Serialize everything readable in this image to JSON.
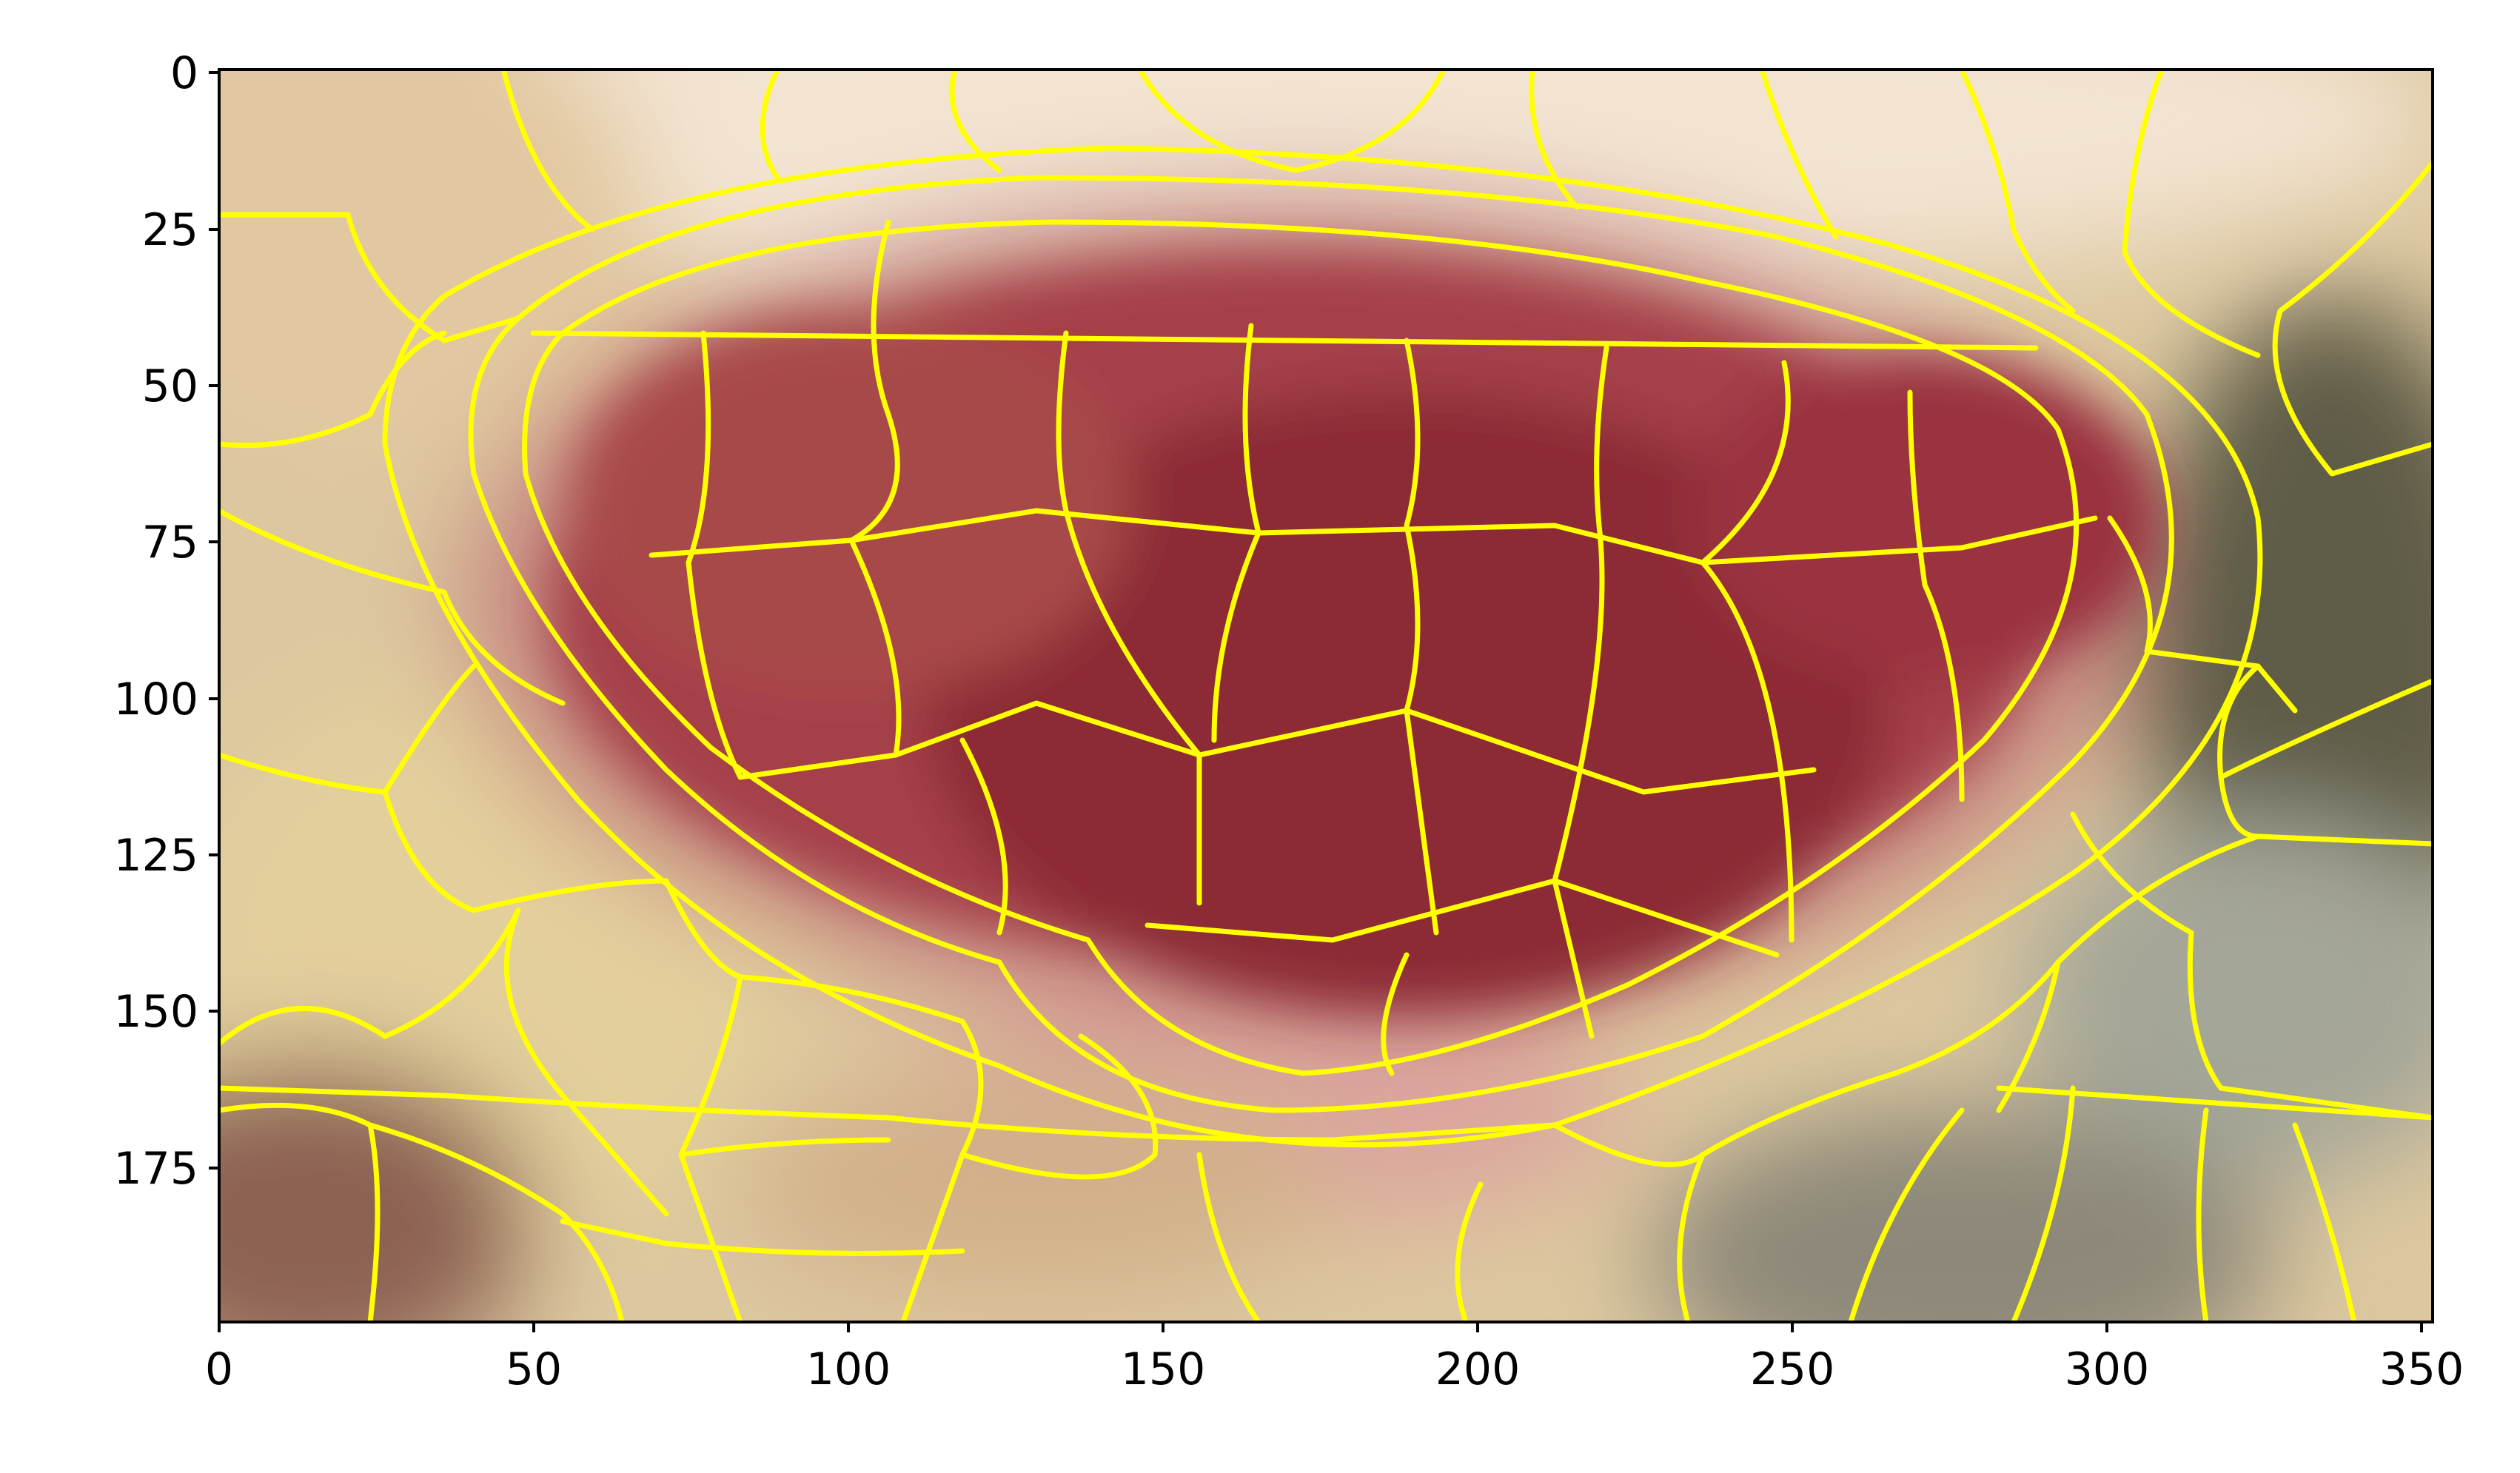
{
  "figure": {
    "type": "image-with-superpixel-overlay",
    "overlay_color": "#ffff00",
    "axes_color": "#000000"
  },
  "chart_data": {
    "type": "image",
    "x_ticks": [
      "0",
      "50",
      "100",
      "150",
      "200",
      "250",
      "300",
      "350"
    ],
    "y_ticks": [
      "0",
      "25",
      "50",
      "75",
      "100",
      "125",
      "150",
      "175"
    ],
    "xlim": [
      0,
      352
    ],
    "ylim": [
      200,
      0
    ],
    "image_palette": {
      "background_top": "#f1e3cf",
      "skin_left": "#d8c08d",
      "lesion": "#9e3a3f",
      "lesion_dark": "#812533",
      "halo": "#d9a09a",
      "right_dark": "#5b5a45",
      "right_gray": "#9c9d8e",
      "bottom_left_shadow": "#7d5a4a"
    }
  }
}
